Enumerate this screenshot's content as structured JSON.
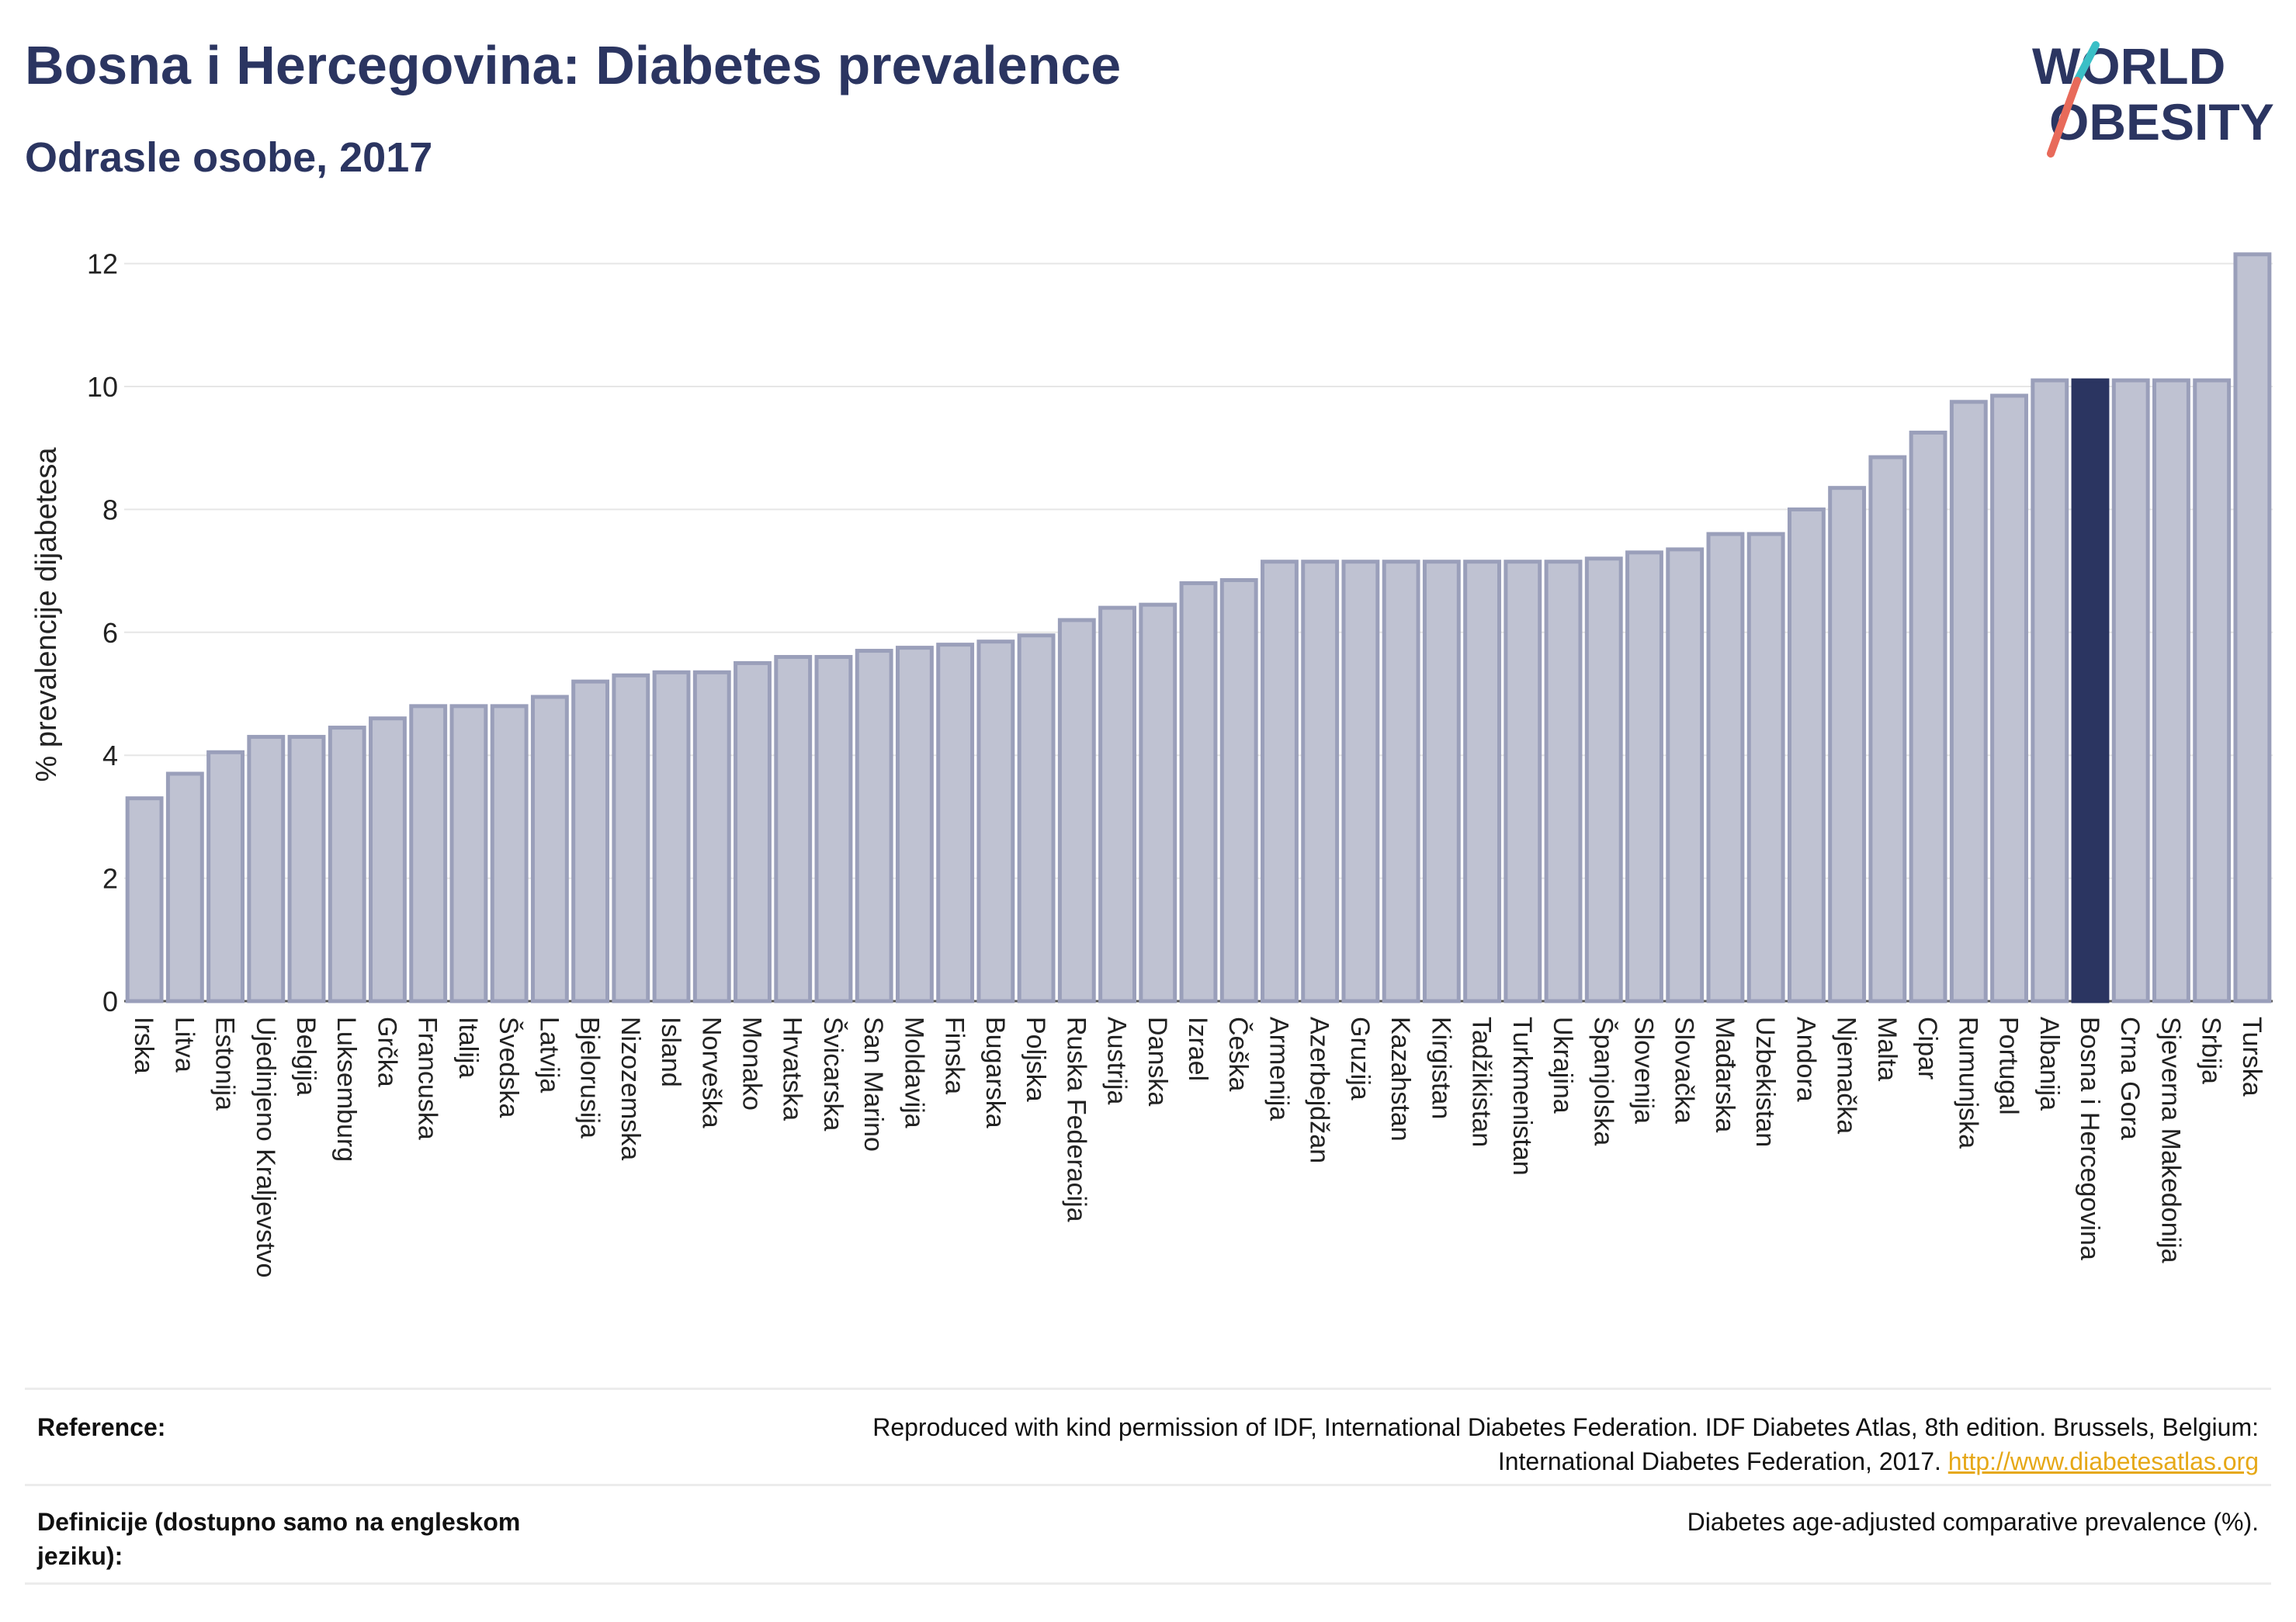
{
  "header": {
    "title": "Bosna i Hercegovina: Diabetes prevalence",
    "subtitle": "Odrasle osobe, 2017",
    "logo_line1": "WORLD",
    "logo_line2": "OBESITY"
  },
  "chart_data": {
    "type": "bar",
    "ylabel": "% prevalencije dijabetesa",
    "ylim": [
      0,
      12.5
    ],
    "yticks": [
      0,
      2,
      4,
      6,
      8,
      10,
      12
    ],
    "grid": true,
    "highlight": "Bosna i Hercegovina",
    "colors": {
      "bar": "#bfc2d2",
      "bar_edge": "#9a9fba",
      "highlight": "#2b3561",
      "grid": "#e6e6e6"
    },
    "categories": [
      "Irska",
      "Litva",
      "Estonija",
      "Ujedinjeno Kraljevstvo",
      "Belgija",
      "Luksemburg",
      "Grčka",
      "Francuska",
      "Italija",
      "Švedska",
      "Latvija",
      "Bjelorusija",
      "Nizozemska",
      "Island",
      "Norveška",
      "Monako",
      "Hrvatska",
      "Švicarska",
      "San Marino",
      "Moldavija",
      "Finska",
      "Bugarska",
      "Poljska",
      "Ruska Federacija",
      "Austrija",
      "Danska",
      "Izrael",
      "Češka",
      "Armenija",
      "Azerbejdžan",
      "Gruzija",
      "Kazahstan",
      "Kirgistan",
      "Tadžikistan",
      "Turkmenistan",
      "Ukrajina",
      "Španjolska",
      "Slovenija",
      "Slovačka",
      "Mađarska",
      "Uzbekistan",
      "Andora",
      "Njemačka",
      "Malta",
      "Cipar",
      "Rumunjska",
      "Portugal",
      "Albanija",
      "Bosna i Hercegovina",
      "Crna Gora",
      "Sjeverna Makedonija",
      "Srbija",
      "Turska"
    ],
    "values": [
      3.3,
      3.7,
      4.05,
      4.3,
      4.3,
      4.45,
      4.6,
      4.8,
      4.8,
      4.8,
      4.95,
      5.2,
      5.3,
      5.35,
      5.35,
      5.5,
      5.6,
      5.6,
      5.7,
      5.75,
      5.8,
      5.85,
      5.95,
      6.2,
      6.4,
      6.45,
      6.8,
      6.85,
      7.15,
      7.15,
      7.15,
      7.15,
      7.15,
      7.15,
      7.15,
      7.15,
      7.2,
      7.3,
      7.35,
      7.6,
      7.6,
      8.0,
      8.35,
      8.85,
      9.25,
      9.75,
      9.85,
      10.1,
      10.1,
      10.1,
      10.1,
      10.1,
      12.15
    ]
  },
  "footer": {
    "reference_label": "Reference:",
    "reference_text_1": "Reproduced with kind permission of IDF, International Diabetes Federation. IDF Diabetes Atlas, 8th edition. Brussels, Belgium:",
    "reference_text_2": "International Diabetes Federation, 2017.",
    "reference_link": "http://www.diabetesatlas.org",
    "definition_label": "Definicije (dostupno samo na engleskom jeziku):",
    "definition_text": "Diabetes age-adjusted comparative prevalence (%)."
  }
}
